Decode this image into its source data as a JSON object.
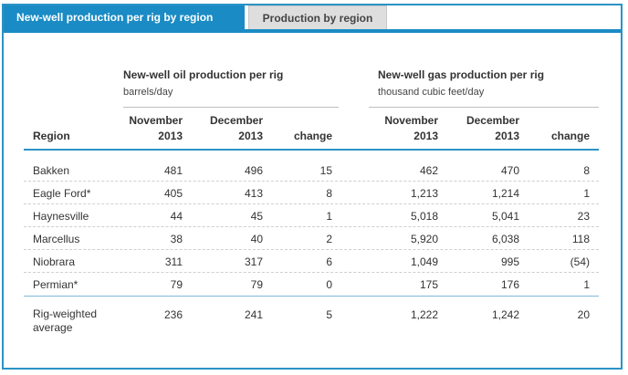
{
  "tabs": [
    {
      "label": "New-well production per rig by region",
      "active": true
    },
    {
      "label": "Production by region",
      "active": false
    }
  ],
  "oil_group": {
    "title": "New-well oil production per rig",
    "unit": "barrels/day"
  },
  "gas_group": {
    "title": "New-well gas production per rig",
    "unit": "thousand cubic feet/day"
  },
  "columns": {
    "region": "Region",
    "nov_line1": "November",
    "nov_line2": "2013",
    "dec_line1": "December",
    "dec_line2": "2013",
    "change": "change"
  },
  "rows": [
    {
      "region": "Bakken",
      "oil_nov": "481",
      "oil_dec": "496",
      "oil_change": "15",
      "gas_nov": "462",
      "gas_dec": "470",
      "gas_change": "8"
    },
    {
      "region": "Eagle Ford*",
      "oil_nov": "405",
      "oil_dec": "413",
      "oil_change": "8",
      "gas_nov": "1,213",
      "gas_dec": "1,214",
      "gas_change": "1"
    },
    {
      "region": "Haynesville",
      "oil_nov": "44",
      "oil_dec": "45",
      "oil_change": "1",
      "gas_nov": "5,018",
      "gas_dec": "5,041",
      "gas_change": "23"
    },
    {
      "region": "Marcellus",
      "oil_nov": "38",
      "oil_dec": "40",
      "oil_change": "2",
      "gas_nov": "5,920",
      "gas_dec": "6,038",
      "gas_change": "118"
    },
    {
      "region": "Niobrara",
      "oil_nov": "311",
      "oil_dec": "317",
      "oil_change": "6",
      "gas_nov": "1,049",
      "gas_dec": "995",
      "gas_change": "(54)"
    },
    {
      "region": "Permian*",
      "oil_nov": "79",
      "oil_dec": "79",
      "oil_change": "0",
      "gas_nov": "175",
      "gas_dec": "176",
      "gas_change": "1"
    }
  ],
  "footer_row": {
    "region_line1": "Rig-weighted",
    "region_line2": "average",
    "oil_nov": "236",
    "oil_dec": "241",
    "oil_change": "5",
    "gas_nov": "1,222",
    "gas_dec": "1,242",
    "gas_change": "20"
  },
  "colors": {
    "accent": "#1a8bc4",
    "inactive_tab": "#dedede"
  }
}
